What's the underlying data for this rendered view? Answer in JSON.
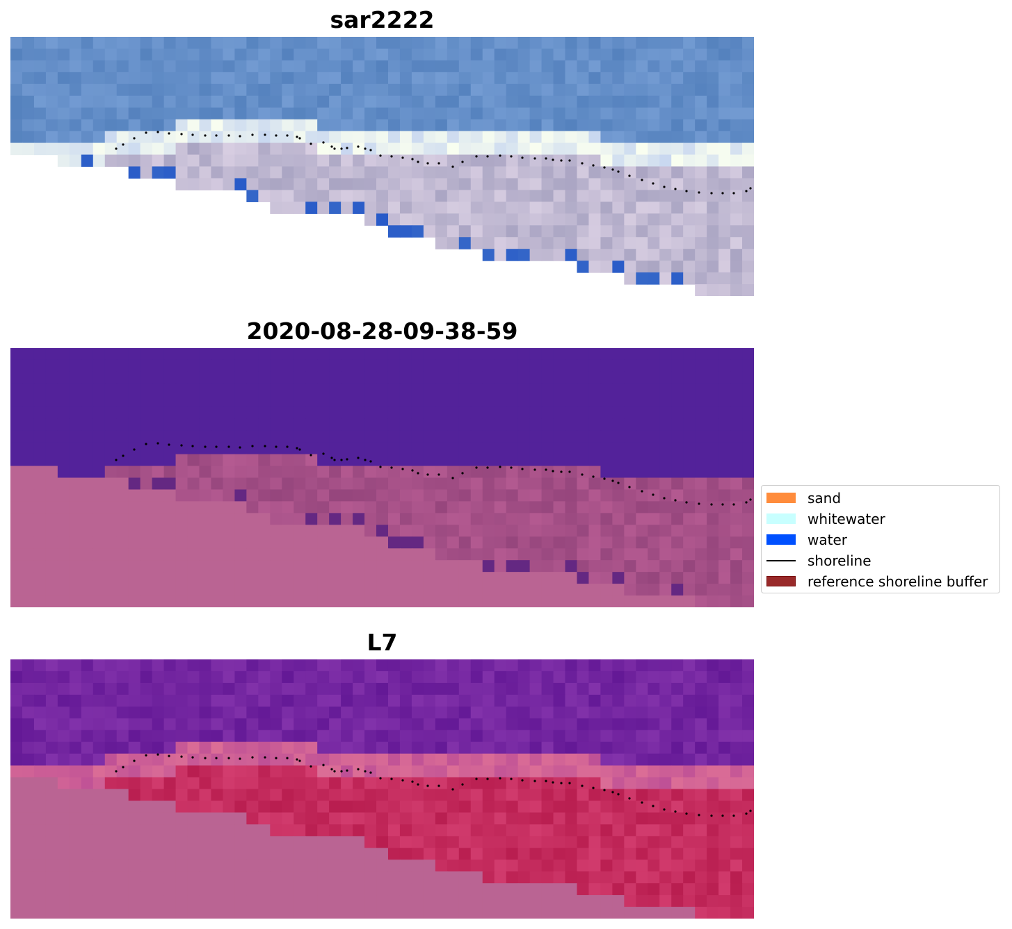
{
  "panels": [
    {
      "title": "sar2222",
      "style": "rgb"
    },
    {
      "title": "2020-08-28-09-38-59",
      "style": "classified"
    },
    {
      "title": "L7",
      "style": "index"
    }
  ],
  "legend": {
    "items": [
      {
        "label": "sand",
        "kind": "patch",
        "color": "#ff8c3c",
        "edge": "#ff8c3c"
      },
      {
        "label": "whitewater",
        "kind": "patch",
        "color": "#c8ffff",
        "edge": "#c8ffff"
      },
      {
        "label": "water",
        "kind": "patch",
        "color": "#0050ff",
        "edge": "#0050ff"
      },
      {
        "label": "shoreline",
        "kind": "line",
        "color": "#000000"
      },
      {
        "label": "reference shoreline buffer",
        "kind": "patch",
        "color": "#992a2a",
        "edge": "#7a1010"
      }
    ]
  },
  "colors": {
    "nodata_mask": "#ba6493",
    "water_class": "#53229a",
    "sand_blend": "#9a4a80",
    "shoreline": "#000000"
  }
}
